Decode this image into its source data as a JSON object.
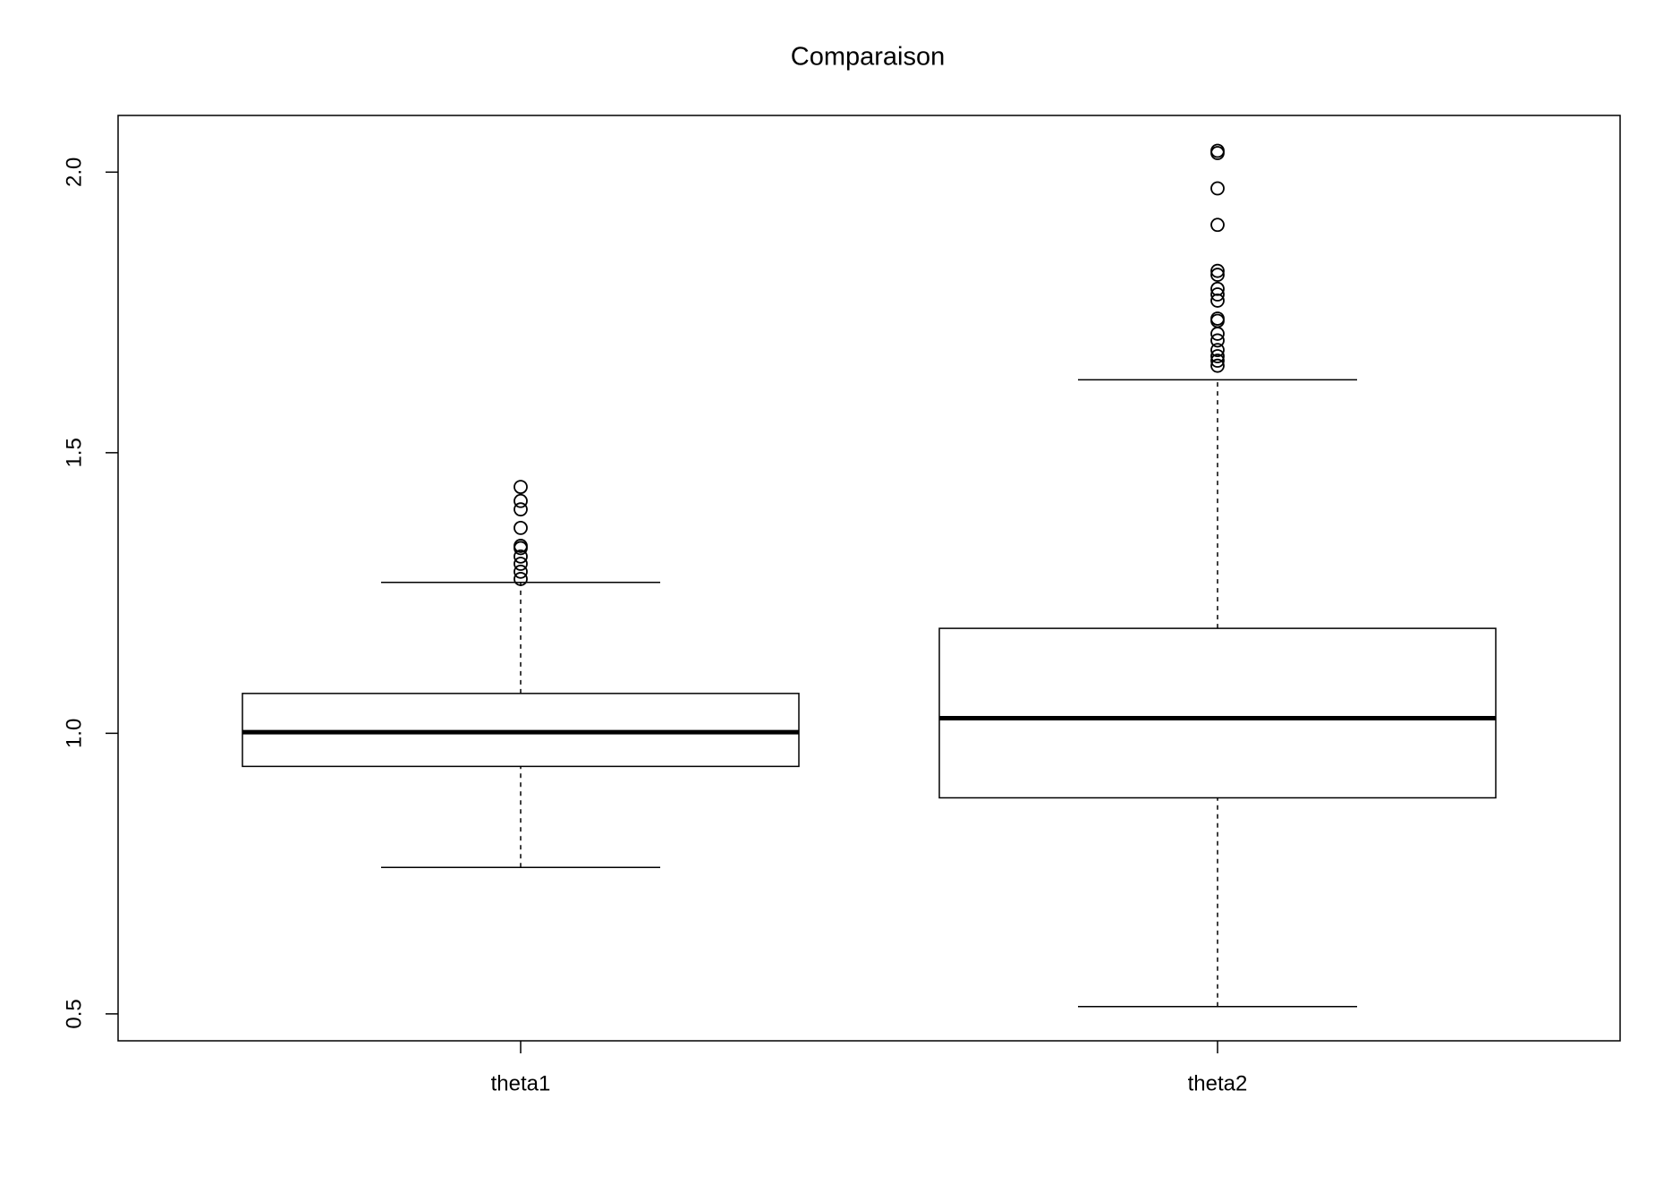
{
  "chart_data": {
    "type": "box",
    "title": "Comparaison",
    "categories": [
      "theta1",
      "theta2"
    ],
    "boxes": [
      {
        "whislo": 0.761,
        "q1": 0.941,
        "median": 1.002,
        "q3": 1.071,
        "whishi": 1.269,
        "outliers": [
          1.439,
          1.414,
          1.399,
          1.366,
          1.334,
          1.33,
          1.315,
          1.302,
          1.288,
          1.275
        ]
      },
      {
        "whislo": 0.513,
        "q1": 0.885,
        "median": 1.027,
        "q3": 1.187,
        "whishi": 1.63,
        "outliers": [
          2.038,
          2.034,
          1.971,
          1.906,
          1.824,
          1.817,
          1.792,
          1.782,
          1.771,
          1.739,
          1.735,
          1.712,
          1.7,
          1.683,
          1.672,
          1.664,
          1.655
        ]
      }
    ],
    "color": "#000000",
    "ylim": [
      0.452,
      2.101
    ],
    "yticks": [
      0.5,
      {
        "value": 1,
        "label": "1.0"
      },
      1.5,
      {
        "value": 2,
        "label": "2.0"
      }
    ]
  }
}
